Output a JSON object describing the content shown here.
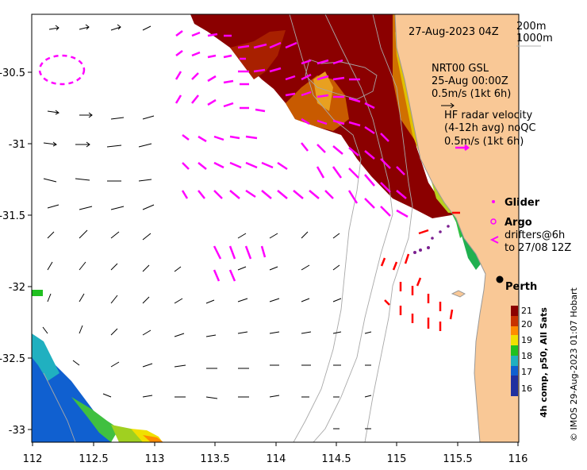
{
  "map": {
    "timestamp": "27-Aug-2023 04Z",
    "depth_contours": [
      "200m",
      "1000m"
    ],
    "model_legend": {
      "line1": "NRT00 GSL",
      "line2": "25-Aug 00:00Z",
      "line3": "0.5m/s (1kt 6h)"
    },
    "radar_legend": {
      "line1": "HF radar velocity",
      "line2": "(4-12h avg) noQC",
      "line3": "0.5m/s (1kt 6h)"
    },
    "markers": {
      "glider": "Glider",
      "argo": "Argo",
      "drifters1": "drifters@6h",
      "drifters2": "to 27/08 12Z"
    },
    "city": {
      "name": "Perth",
      "lon": 115.86,
      "lat": -31.95
    },
    "colorbar": {
      "ticks": [
        "21",
        "20",
        "19",
        "18",
        "17",
        "16"
      ],
      "label": "4h comp, p50, All Sats",
      "colors": [
        "#8b0000",
        "#c83200",
        "#ff8c00",
        "#f0e000",
        "#20c020",
        "#20b0c0",
        "#1060d0",
        "#2030a0"
      ]
    },
    "credit": "© IMOS 29-Aug-2023 01:07 Hobart",
    "x_axis": {
      "ticks": [
        "112",
        "112.5",
        "113",
        "113.5",
        "114",
        "114.5",
        "115",
        "115.5",
        "116"
      ],
      "range": [
        112,
        116
      ]
    },
    "y_axis": {
      "ticks": [
        "-30.5",
        "-31",
        "-31.5",
        "-32",
        "-32.5",
        "-33"
      ],
      "range": [
        -33.1,
        -30.0
      ]
    },
    "colors": {
      "land": "#f9c896",
      "model_arrow": "#000000",
      "radar_arrow": "#ff00ff",
      "coastline": "#999999"
    }
  }
}
